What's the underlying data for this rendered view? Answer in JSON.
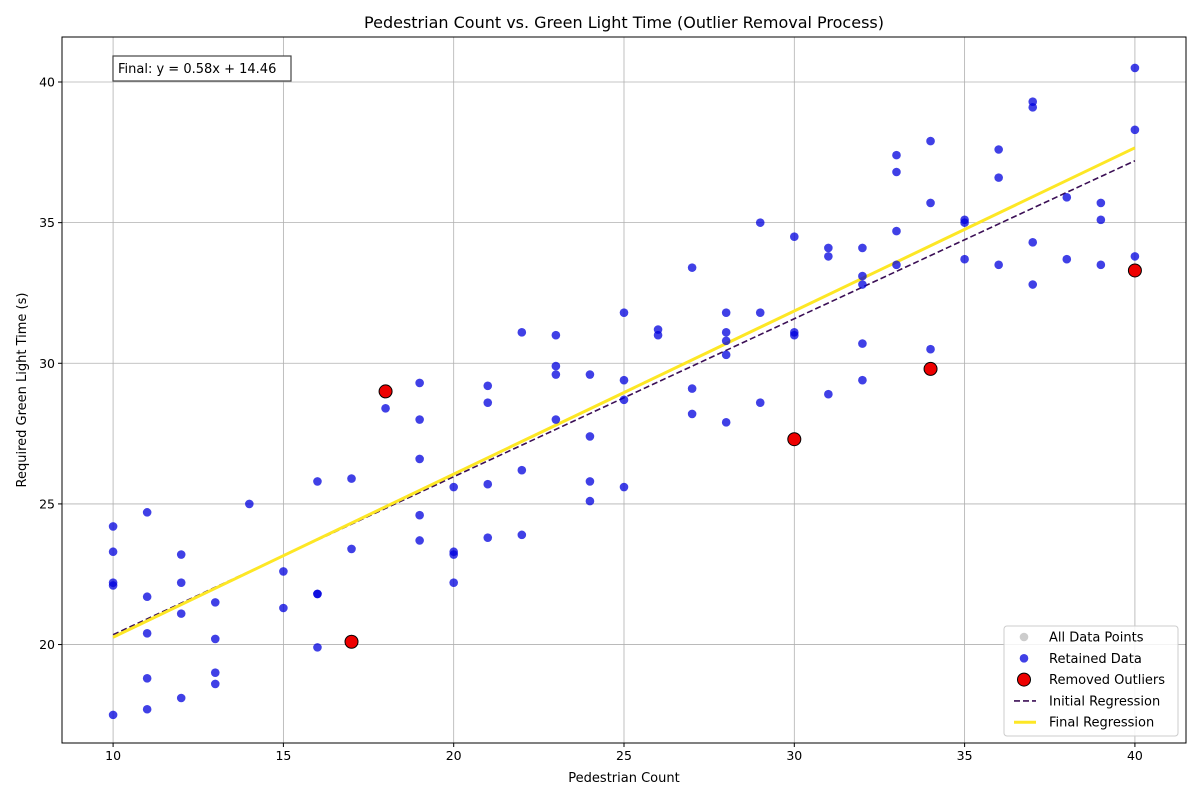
{
  "chart_data": {
    "type": "scatter",
    "title": "Pedestrian Count vs. Green Light Time (Outlier Removal Process)",
    "xlabel": "Pedestrian Count",
    "ylabel": "Required Green Light Time (s)",
    "xlim": [
      8.5,
      41.5
    ],
    "ylim": [
      16.5,
      41.6
    ],
    "xticks": [
      10,
      15,
      20,
      25,
      30,
      35,
      40
    ],
    "yticks": [
      20,
      25,
      30,
      35,
      40
    ],
    "grid": true,
    "legend_position": "lower-right",
    "annotation": "Final: y = 0.58x + 14.46",
    "colors": {
      "retained": "#0000dd",
      "outlier": "#ee0000",
      "all_points": "#cccccc",
      "initial_line": "#3b0f55",
      "final_line": "#fde725",
      "grid": "#b0b0b0"
    },
    "legend": [
      {
        "label": "All Data Points",
        "kind": "all"
      },
      {
        "label": "Retained Data",
        "kind": "retained"
      },
      {
        "label": "Removed Outliers",
        "kind": "outlier"
      },
      {
        "label": "Initial Regression",
        "kind": "initial"
      },
      {
        "label": "Final Regression",
        "kind": "final"
      }
    ],
    "series": [
      {
        "name": "Retained Data",
        "points": [
          [
            10,
            24.2
          ],
          [
            10,
            23.3
          ],
          [
            10,
            22.2
          ],
          [
            10,
            22.1
          ],
          [
            10,
            17.5
          ],
          [
            11,
            24.7
          ],
          [
            11,
            21.7
          ],
          [
            11,
            20.4
          ],
          [
            11,
            18.8
          ],
          [
            11,
            17.7
          ],
          [
            12,
            23.2
          ],
          [
            12,
            22.2
          ],
          [
            12,
            21.1
          ],
          [
            12,
            18.1
          ],
          [
            13,
            21.5
          ],
          [
            13,
            20.2
          ],
          [
            13,
            19.0
          ],
          [
            13,
            18.6
          ],
          [
            14,
            25.0
          ],
          [
            15,
            22.6
          ],
          [
            15,
            21.3
          ],
          [
            16,
            25.8
          ],
          [
            16,
            21.8
          ],
          [
            16,
            21.8
          ],
          [
            16,
            19.9
          ],
          [
            17,
            25.9
          ],
          [
            17,
            23.4
          ],
          [
            18,
            28.4
          ],
          [
            19,
            29.3
          ],
          [
            19,
            28.0
          ],
          [
            19,
            26.6
          ],
          [
            19,
            24.6
          ],
          [
            19,
            23.7
          ],
          [
            20,
            25.6
          ],
          [
            20,
            23.3
          ],
          [
            20,
            23.2
          ],
          [
            20,
            22.2
          ],
          [
            21,
            29.2
          ],
          [
            21,
            28.6
          ],
          [
            21,
            25.7
          ],
          [
            21,
            23.8
          ],
          [
            22,
            31.1
          ],
          [
            22,
            26.2
          ],
          [
            22,
            23.9
          ],
          [
            23,
            31.0
          ],
          [
            23,
            29.9
          ],
          [
            23,
            29.6
          ],
          [
            23,
            28.0
          ],
          [
            24,
            29.6
          ],
          [
            24,
            27.4
          ],
          [
            24,
            25.8
          ],
          [
            24,
            25.1
          ],
          [
            25,
            31.8
          ],
          [
            25,
            29.4
          ],
          [
            25,
            28.7
          ],
          [
            25,
            25.6
          ],
          [
            26,
            31.2
          ],
          [
            26,
            31.0
          ],
          [
            27,
            33.4
          ],
          [
            27,
            29.1
          ],
          [
            27,
            28.2
          ],
          [
            28,
            31.8
          ],
          [
            28,
            31.1
          ],
          [
            28,
            30.8
          ],
          [
            28,
            30.3
          ],
          [
            28,
            27.9
          ],
          [
            29,
            35.0
          ],
          [
            29,
            31.8
          ],
          [
            29,
            28.6
          ],
          [
            30,
            34.5
          ],
          [
            30,
            31.1
          ],
          [
            30,
            31.0
          ],
          [
            31,
            34.1
          ],
          [
            31,
            33.8
          ],
          [
            31,
            28.9
          ],
          [
            32,
            34.1
          ],
          [
            32,
            33.1
          ],
          [
            32,
            32.8
          ],
          [
            32,
            30.7
          ],
          [
            32,
            29.4
          ],
          [
            33,
            37.4
          ],
          [
            33,
            36.8
          ],
          [
            33,
            34.7
          ],
          [
            33,
            33.5
          ],
          [
            34,
            37.9
          ],
          [
            34,
            35.7
          ],
          [
            34,
            30.5
          ],
          [
            35,
            35.1
          ],
          [
            35,
            35.0
          ],
          [
            35,
            33.7
          ],
          [
            36,
            37.6
          ],
          [
            36,
            36.6
          ],
          [
            36,
            33.5
          ],
          [
            37,
            39.3
          ],
          [
            37,
            39.1
          ],
          [
            37,
            34.3
          ],
          [
            37,
            32.8
          ],
          [
            38,
            35.9
          ],
          [
            38,
            33.7
          ],
          [
            39,
            35.7
          ],
          [
            39,
            35.1
          ],
          [
            39,
            33.5
          ],
          [
            40,
            40.5
          ],
          [
            40,
            38.3
          ],
          [
            40,
            33.8
          ]
        ]
      },
      {
        "name": "Removed Outliers",
        "points": [
          [
            18,
            29.0
          ],
          [
            17,
            20.1
          ],
          [
            30,
            27.3
          ],
          [
            34,
            29.8
          ],
          [
            40,
            33.3
          ]
        ]
      }
    ],
    "lines": [
      {
        "name": "Initial Regression",
        "x": [
          10,
          40
        ],
        "y": [
          20.35,
          37.2
        ]
      },
      {
        "name": "Final Regression",
        "x": [
          10,
          40
        ],
        "y": [
          20.26,
          37.66
        ]
      }
    ]
  }
}
